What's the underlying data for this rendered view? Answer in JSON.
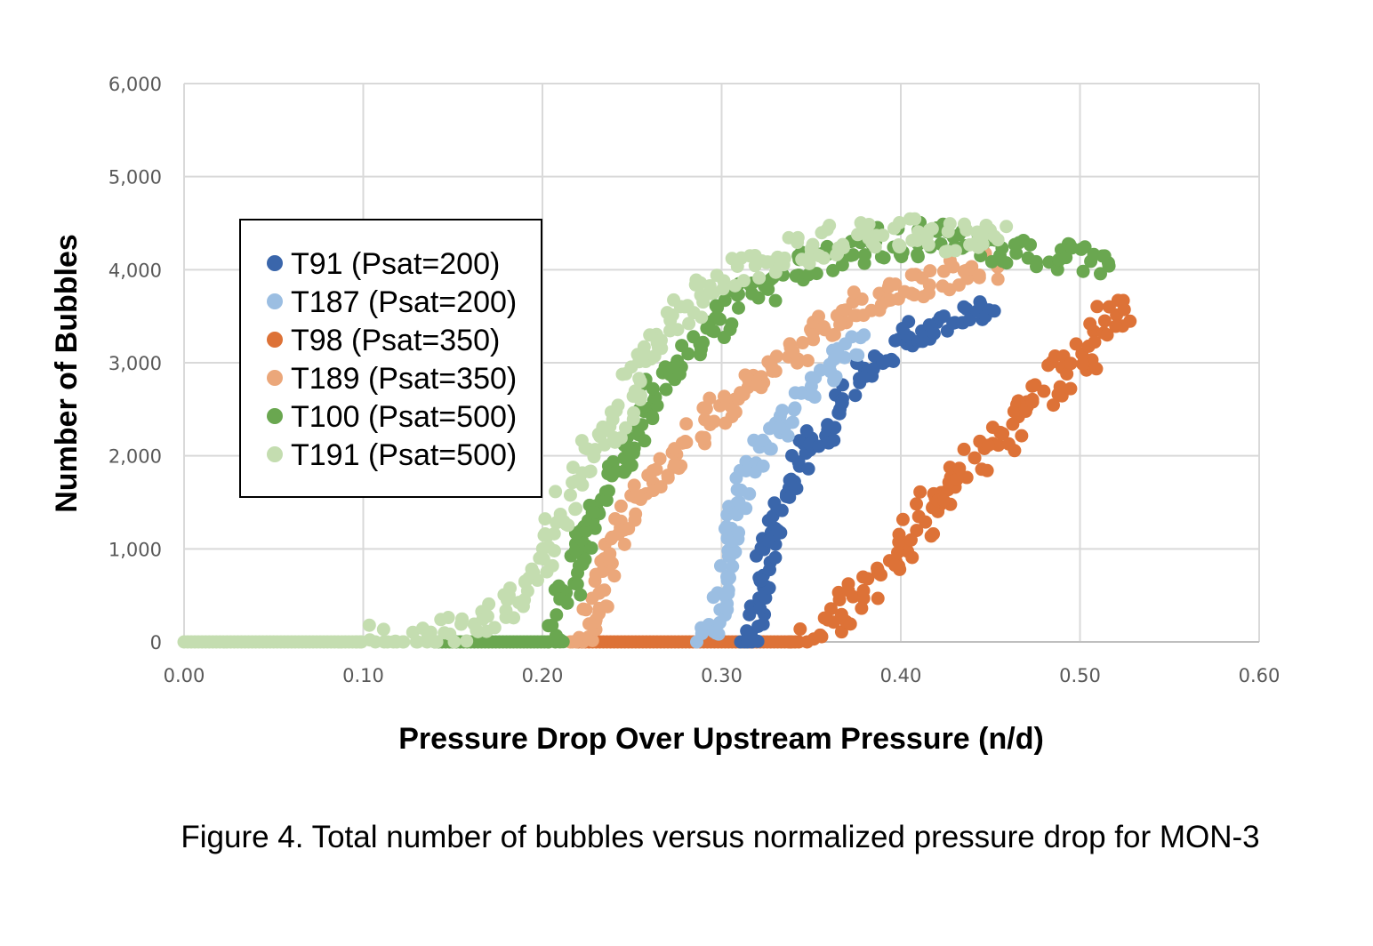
{
  "chart_data": {
    "type": "scatter",
    "title": "",
    "xlabel": "Pressure Drop Over Upstream Pressure (n/d)",
    "ylabel": "Number of Bubbles",
    "xlim": [
      0,
      0.6
    ],
    "ylim": [
      0,
      6000
    ],
    "x_ticks": [
      "0.00",
      "0.10",
      "0.20",
      "0.30",
      "0.40",
      "0.50",
      "0.60"
    ],
    "y_ticks": [
      "0",
      "1,000",
      "2,000",
      "3,000",
      "4,000",
      "5,000",
      "6,000"
    ],
    "grid": true,
    "legend_position": "upper-left",
    "series": [
      {
        "name": "T98 (Psat=350)",
        "color": "#dd7237",
        "spread_y": 250,
        "x": [
          0.22,
          0.3,
          0.345,
          0.36,
          0.37,
          0.39,
          0.4,
          0.42,
          0.44,
          0.46,
          0.47,
          0.49,
          0.5,
          0.51,
          0.52,
          0.525
        ],
        "y": [
          0,
          0,
          0,
          200,
          450,
          700,
          1000,
          1500,
          2000,
          2300,
          2550,
          2850,
          3000,
          3250,
          3500,
          3700
        ]
      },
      {
        "name": "T91 (Psat=200)",
        "color": "#3a66ab",
        "spread_y": 180,
        "x": [
          0.31,
          0.318,
          0.322,
          0.326,
          0.33,
          0.335,
          0.345,
          0.36,
          0.37,
          0.38,
          0.39,
          0.4,
          0.42,
          0.44,
          0.455
        ],
        "y": [
          0,
          200,
          600,
          1000,
          1300,
          1600,
          2000,
          2300,
          2600,
          2900,
          3100,
          3250,
          3400,
          3500,
          3550
        ]
      },
      {
        "name": "T187 (Psat=200)",
        "color": "#9bbee2",
        "spread_y": 180,
        "x": [
          0.29,
          0.297,
          0.3,
          0.303,
          0.306,
          0.31,
          0.32,
          0.33,
          0.34,
          0.35,
          0.36,
          0.37,
          0.38
        ],
        "y": [
          0,
          200,
          500,
          900,
          1200,
          1600,
          2000,
          2300,
          2500,
          2700,
          2900,
          3100,
          3300
        ]
      },
      {
        "name": "T189 (Psat=350)",
        "color": "#eba77a",
        "spread_y": 200,
        "x": [
          0.215,
          0.225,
          0.23,
          0.235,
          0.24,
          0.25,
          0.26,
          0.275,
          0.29,
          0.3,
          0.32,
          0.34,
          0.36,
          0.38,
          0.4,
          0.43,
          0.455
        ],
        "y": [
          0,
          100,
          400,
          700,
          1000,
          1400,
          1700,
          2000,
          2300,
          2500,
          2800,
          3100,
          3400,
          3650,
          3800,
          3950,
          4050
        ]
      },
      {
        "name": "T100 (Psat=500)",
        "color": "#6aa750",
        "spread_y": 220,
        "x": [
          0.14,
          0.18,
          0.205,
          0.21,
          0.215,
          0.22,
          0.23,
          0.24,
          0.25,
          0.26,
          0.275,
          0.29,
          0.31,
          0.34,
          0.38,
          0.42,
          0.46,
          0.49,
          0.52
        ],
        "y": [
          0,
          0,
          0,
          300,
          600,
          1000,
          1400,
          1800,
          2200,
          2600,
          3000,
          3300,
          3700,
          4000,
          4250,
          4350,
          4200,
          4150,
          4050
        ]
      },
      {
        "name": "T191 (Psat=500)",
        "color": "#c4ddb0",
        "spread_y": 220,
        "x": [
          0.0,
          0.05,
          0.1,
          0.14,
          0.16,
          0.18,
          0.19,
          0.2,
          0.21,
          0.22,
          0.23,
          0.245,
          0.255,
          0.27,
          0.29,
          0.31,
          0.33,
          0.36,
          0.4,
          0.43,
          0.46
        ],
        "y": [
          0,
          0,
          0,
          50,
          150,
          400,
          600,
          900,
          1400,
          1800,
          2100,
          2500,
          3000,
          3400,
          3750,
          4000,
          4150,
          4300,
          4400,
          4350,
          4300
        ]
      }
    ],
    "legend_order": [
      1,
      2,
      0,
      3,
      4,
      5
    ]
  },
  "caption": "Figure 4. Total number of bubbles versus normalized pressure drop for MON-3"
}
